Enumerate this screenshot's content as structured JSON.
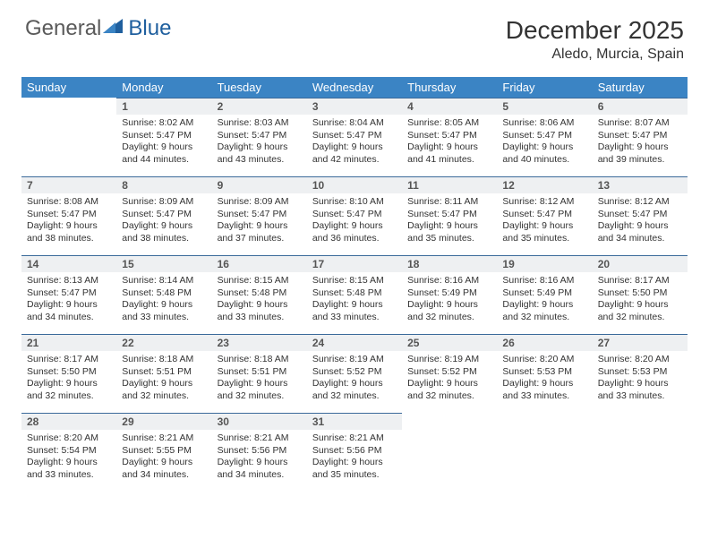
{
  "brand": {
    "text1": "General",
    "text2": "Blue",
    "color1": "#6a6a6a",
    "color2": "#1f5f9e"
  },
  "title": "December 2025",
  "location": "Aledo, Murcia, Spain",
  "header_bg": "#3b84c4",
  "header_fg": "#ffffff",
  "daynum_bg": "#eef0f2",
  "rule_color": "#3b6a9a",
  "weekdays": [
    "Sunday",
    "Monday",
    "Tuesday",
    "Wednesday",
    "Thursday",
    "Friday",
    "Saturday"
  ],
  "weeks": [
    [
      null,
      {
        "n": "1",
        "sr": "8:02 AM",
        "ss": "5:47 PM",
        "dl": "9 hours and 44 minutes."
      },
      {
        "n": "2",
        "sr": "8:03 AM",
        "ss": "5:47 PM",
        "dl": "9 hours and 43 minutes."
      },
      {
        "n": "3",
        "sr": "8:04 AM",
        "ss": "5:47 PM",
        "dl": "9 hours and 42 minutes."
      },
      {
        "n": "4",
        "sr": "8:05 AM",
        "ss": "5:47 PM",
        "dl": "9 hours and 41 minutes."
      },
      {
        "n": "5",
        "sr": "8:06 AM",
        "ss": "5:47 PM",
        "dl": "9 hours and 40 minutes."
      },
      {
        "n": "6",
        "sr": "8:07 AM",
        "ss": "5:47 PM",
        "dl": "9 hours and 39 minutes."
      }
    ],
    [
      {
        "n": "7",
        "sr": "8:08 AM",
        "ss": "5:47 PM",
        "dl": "9 hours and 38 minutes."
      },
      {
        "n": "8",
        "sr": "8:09 AM",
        "ss": "5:47 PM",
        "dl": "9 hours and 38 minutes."
      },
      {
        "n": "9",
        "sr": "8:09 AM",
        "ss": "5:47 PM",
        "dl": "9 hours and 37 minutes."
      },
      {
        "n": "10",
        "sr": "8:10 AM",
        "ss": "5:47 PM",
        "dl": "9 hours and 36 minutes."
      },
      {
        "n": "11",
        "sr": "8:11 AM",
        "ss": "5:47 PM",
        "dl": "9 hours and 35 minutes."
      },
      {
        "n": "12",
        "sr": "8:12 AM",
        "ss": "5:47 PM",
        "dl": "9 hours and 35 minutes."
      },
      {
        "n": "13",
        "sr": "8:12 AM",
        "ss": "5:47 PM",
        "dl": "9 hours and 34 minutes."
      }
    ],
    [
      {
        "n": "14",
        "sr": "8:13 AM",
        "ss": "5:47 PM",
        "dl": "9 hours and 34 minutes."
      },
      {
        "n": "15",
        "sr": "8:14 AM",
        "ss": "5:48 PM",
        "dl": "9 hours and 33 minutes."
      },
      {
        "n": "16",
        "sr": "8:15 AM",
        "ss": "5:48 PM",
        "dl": "9 hours and 33 minutes."
      },
      {
        "n": "17",
        "sr": "8:15 AM",
        "ss": "5:48 PM",
        "dl": "9 hours and 33 minutes."
      },
      {
        "n": "18",
        "sr": "8:16 AM",
        "ss": "5:49 PM",
        "dl": "9 hours and 32 minutes."
      },
      {
        "n": "19",
        "sr": "8:16 AM",
        "ss": "5:49 PM",
        "dl": "9 hours and 32 minutes."
      },
      {
        "n": "20",
        "sr": "8:17 AM",
        "ss": "5:50 PM",
        "dl": "9 hours and 32 minutes."
      }
    ],
    [
      {
        "n": "21",
        "sr": "8:17 AM",
        "ss": "5:50 PM",
        "dl": "9 hours and 32 minutes."
      },
      {
        "n": "22",
        "sr": "8:18 AM",
        "ss": "5:51 PM",
        "dl": "9 hours and 32 minutes."
      },
      {
        "n": "23",
        "sr": "8:18 AM",
        "ss": "5:51 PM",
        "dl": "9 hours and 32 minutes."
      },
      {
        "n": "24",
        "sr": "8:19 AM",
        "ss": "5:52 PM",
        "dl": "9 hours and 32 minutes."
      },
      {
        "n": "25",
        "sr": "8:19 AM",
        "ss": "5:52 PM",
        "dl": "9 hours and 32 minutes."
      },
      {
        "n": "26",
        "sr": "8:20 AM",
        "ss": "5:53 PM",
        "dl": "9 hours and 33 minutes."
      },
      {
        "n": "27",
        "sr": "8:20 AM",
        "ss": "5:53 PM",
        "dl": "9 hours and 33 minutes."
      }
    ],
    [
      {
        "n": "28",
        "sr": "8:20 AM",
        "ss": "5:54 PM",
        "dl": "9 hours and 33 minutes."
      },
      {
        "n": "29",
        "sr": "8:21 AM",
        "ss": "5:55 PM",
        "dl": "9 hours and 34 minutes."
      },
      {
        "n": "30",
        "sr": "8:21 AM",
        "ss": "5:56 PM",
        "dl": "9 hours and 34 minutes."
      },
      {
        "n": "31",
        "sr": "8:21 AM",
        "ss": "5:56 PM",
        "dl": "9 hours and 35 minutes."
      },
      null,
      null,
      null
    ]
  ],
  "labels": {
    "sunrise": "Sunrise:",
    "sunset": "Sunset:",
    "daylight": "Daylight:"
  }
}
